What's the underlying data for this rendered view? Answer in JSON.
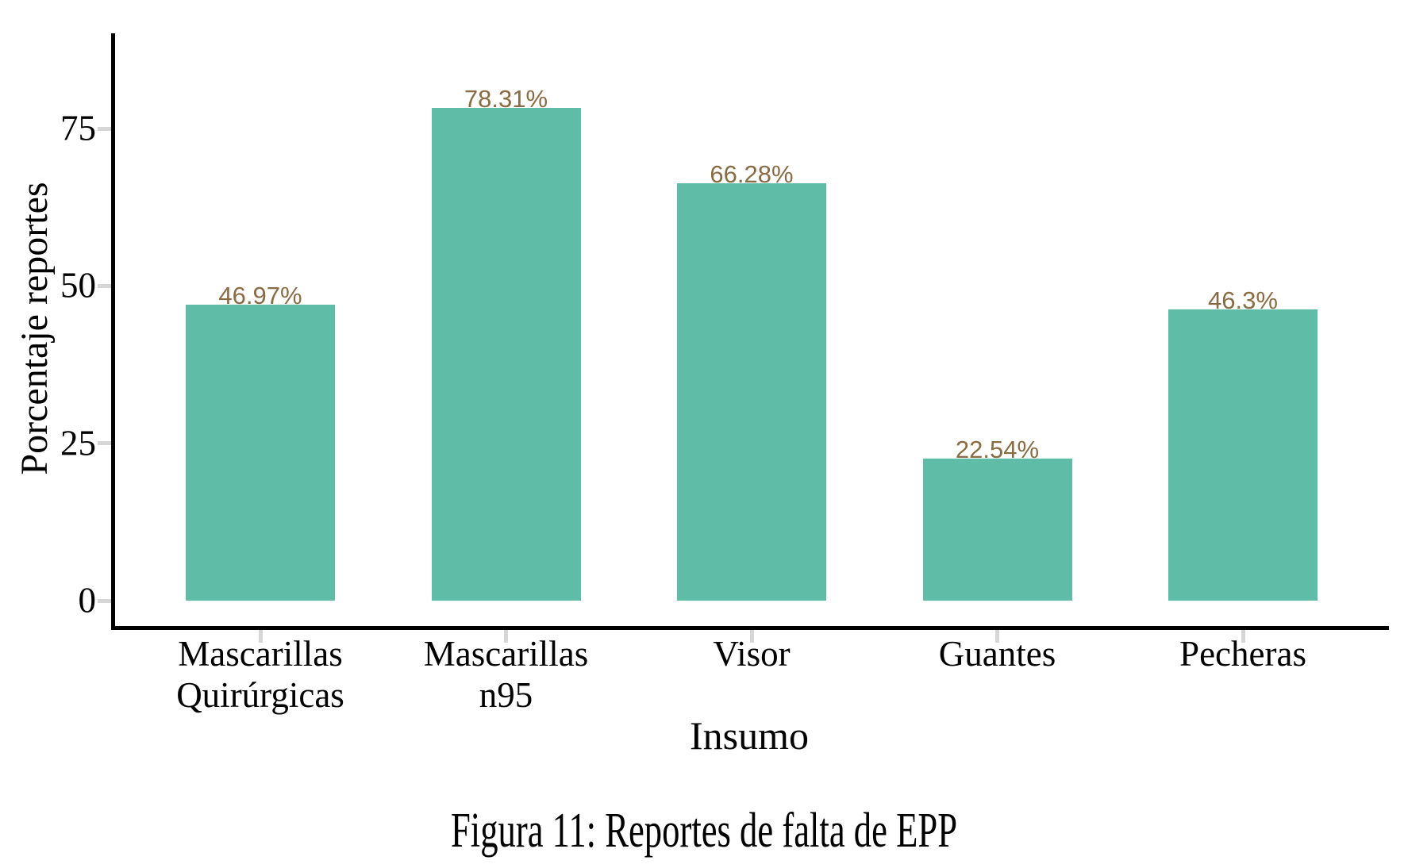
{
  "chart_data": {
    "type": "bar",
    "title": "",
    "xlabel": "Insumo",
    "ylabel": "Porcentaje reportes",
    "categories": [
      "Mascarillas Quirúrgicas",
      "Mascarillas n95",
      "Visor",
      "Guantes",
      "Pecheras"
    ],
    "category_lines": [
      [
        "Mascarillas",
        "Quirúrgicas"
      ],
      [
        "Mascarillas",
        "n95"
      ],
      [
        "Visor"
      ],
      [
        "Guantes"
      ],
      [
        "Pecheras"
      ]
    ],
    "values": [
      46.97,
      78.31,
      66.28,
      22.54,
      46.3
    ],
    "bar_labels": [
      "46.97%",
      "78.31%",
      "66.28%",
      "22.54%",
      "46.3%"
    ],
    "yticks": [
      0,
      25,
      50,
      75
    ],
    "ytick_labels": [
      "0",
      "25",
      "50",
      "75"
    ],
    "ylim": [
      0,
      90
    ],
    "grid": false,
    "legend": false,
    "colors": {
      "bar_fill": "#5FBCA6",
      "value_label": "#8A6B42",
      "axis_line": "#000000",
      "tick_mark": "#D6D6D6",
      "text": "#000000"
    }
  },
  "caption": "Figura 11: Reportes de falta de EPP"
}
